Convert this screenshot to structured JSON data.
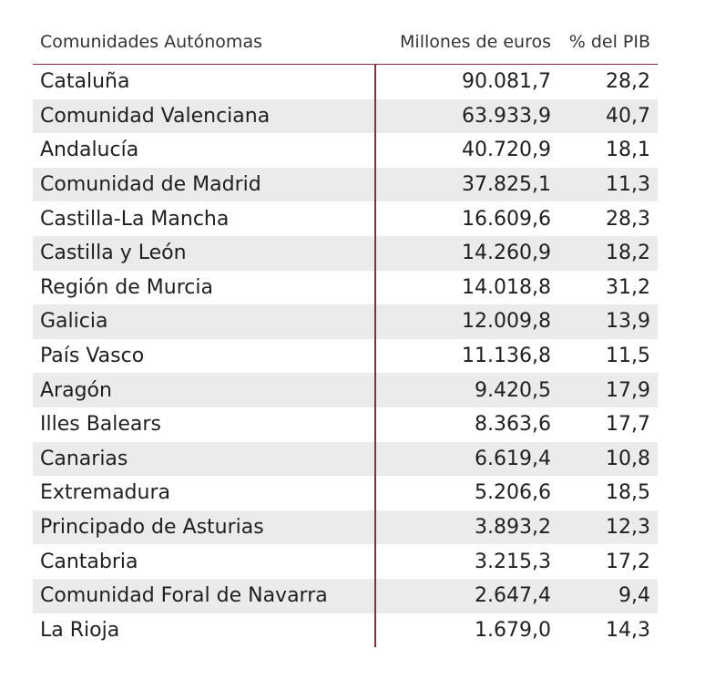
{
  "chart_data": {
    "type": "table",
    "columns": [
      "Comunidades Autónomas",
      "Millones de euros",
      "% del PIB"
    ],
    "rows": [
      {
        "name": "Cataluña",
        "millones": "90.081,7",
        "pib": "28,2"
      },
      {
        "name": "Comunidad Valenciana",
        "millones": "63.933,9",
        "pib": "40,7"
      },
      {
        "name": "Andalucía",
        "millones": "40.720,9",
        "pib": "18,1"
      },
      {
        "name": "Comunidad de Madrid",
        "millones": "37.825,1",
        "pib": "11,3"
      },
      {
        "name": "Castilla-La Mancha",
        "millones": "16.609,6",
        "pib": "28,3"
      },
      {
        "name": "Castilla y León",
        "millones": "14.260,9",
        "pib": "18,2"
      },
      {
        "name": "Región de Murcia",
        "millones": "14.018,8",
        "pib": "31,2"
      },
      {
        "name": "Galicia",
        "millones": "12.009,8",
        "pib": "13,9"
      },
      {
        "name": "País Vasco",
        "millones": "11.136,8",
        "pib": "11,5"
      },
      {
        "name": "Aragón",
        "millones": "9.420,5",
        "pib": "17,9"
      },
      {
        "name": "Illes Balears",
        "millones": "8.363,6",
        "pib": "17,7"
      },
      {
        "name": "Canarias",
        "millones": "6.619,4",
        "pib": "10,8"
      },
      {
        "name": "Extremadura",
        "millones": "5.206,6",
        "pib": "18,5"
      },
      {
        "name": "Principado de Asturias",
        "millones": "3.893,2",
        "pib": "12,3"
      },
      {
        "name": "Cantabria",
        "millones": "3.215,3",
        "pib": "17,2"
      },
      {
        "name": "Comunidad Foral de Navarra",
        "millones": "2.647,4",
        "pib": "9,4"
      },
      {
        "name": "La Rioja",
        "millones": "1.679,0",
        "pib": "14,3"
      }
    ],
    "colors": {
      "rule": "#8b2c3b",
      "stripe": "#ebebeb"
    }
  }
}
